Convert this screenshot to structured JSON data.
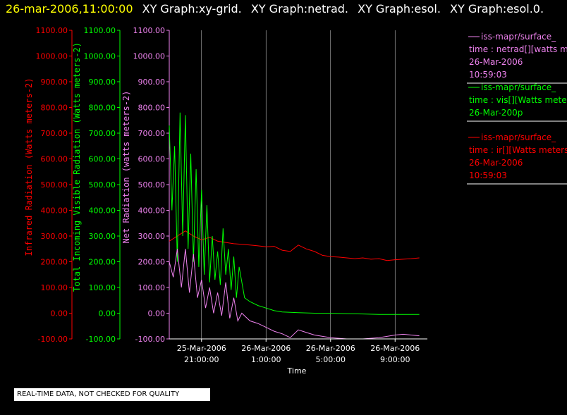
{
  "header": {
    "timestamp": "26-mar-2006,11:00:00",
    "graph_titles": [
      "XY Graph:xy-grid.",
      "XY Graph:netrad.",
      "XY Graph:esol.",
      "XY Graph:esol.0."
    ]
  },
  "colors": {
    "ir": "#ff0000",
    "vis": "#00ff00",
    "net": "#ee82ee",
    "grid": "#ffffff"
  },
  "chart_data": {
    "type": "line",
    "xlabel": "Time",
    "x_ticks": [
      {
        "line1": "25-Mar-2006",
        "line2": "21:00:00"
      },
      {
        "line1": "26-Mar-2006",
        "line2": "1:00:00"
      },
      {
        "line1": "26-Mar-2006",
        "line2": "5:00:00"
      },
      {
        "line1": "26-Mar-2006",
        "line2": "9:00:00"
      }
    ],
    "xlim": [
      "2006-03-25 19:00",
      "2006-03-26 11:00"
    ],
    "ylim": [
      -100,
      1100
    ],
    "y_ticks": [
      "1100.00",
      "1000.00",
      "900.00",
      "800.00",
      "700.00",
      "600.00",
      "500.00",
      "400.00",
      "300.00",
      "200.00",
      "100.00",
      "0.00",
      "-100.00"
    ],
    "axes": [
      {
        "label": "Infrared Radiation (Watts meters-2)",
        "color": "#ff0000"
      },
      {
        "label": "Total Incoming Visible Radiation (Watts meters-2)",
        "color": "#00ff00"
      },
      {
        "label": "Net Radiation (watts meters-2)",
        "color": "#ee82ee"
      }
    ],
    "series": [
      {
        "name": "ir",
        "color": "#ff0000",
        "points": [
          [
            "2006-03-25 19:00",
            280
          ],
          [
            "2006-03-25 19:30",
            300
          ],
          [
            "2006-03-25 20:00",
            320
          ],
          [
            "2006-03-25 20:30",
            300
          ],
          [
            "2006-03-25 21:00",
            285
          ],
          [
            "2006-03-25 21:30",
            295
          ],
          [
            "2006-03-25 22:00",
            280
          ],
          [
            "2006-03-25 22:30",
            275
          ],
          [
            "2006-03-25 23:00",
            270
          ],
          [
            "2006-03-25 23:30",
            268
          ],
          [
            "2006-03-26 00:00",
            265
          ],
          [
            "2006-03-26 00:30",
            262
          ],
          [
            "2006-03-26 01:00",
            258
          ],
          [
            "2006-03-26 01:30",
            260
          ],
          [
            "2006-03-26 02:00",
            245
          ],
          [
            "2006-03-26 02:30",
            240
          ],
          [
            "2006-03-26 03:00",
            265
          ],
          [
            "2006-03-26 03:30",
            250
          ],
          [
            "2006-03-26 04:00",
            240
          ],
          [
            "2006-03-26 04:30",
            225
          ],
          [
            "2006-03-26 05:00",
            220
          ],
          [
            "2006-03-26 05:30",
            218
          ],
          [
            "2006-03-26 06:00",
            215
          ],
          [
            "2006-03-26 06:30",
            212
          ],
          [
            "2006-03-26 07:00",
            215
          ],
          [
            "2006-03-26 07:30",
            210
          ],
          [
            "2006-03-26 08:00",
            212
          ],
          [
            "2006-03-26 08:30",
            205
          ],
          [
            "2006-03-26 09:00",
            208
          ],
          [
            "2006-03-26 09:30",
            210
          ],
          [
            "2006-03-26 10:00",
            212
          ],
          [
            "2006-03-26 10:30",
            215
          ]
        ]
      },
      {
        "name": "vis",
        "color": "#00ff00",
        "points": [
          [
            "2006-03-25 19:00",
            730
          ],
          [
            "2006-03-25 19:10",
            400
          ],
          [
            "2006-03-25 19:20",
            650
          ],
          [
            "2006-03-25 19:30",
            200
          ],
          [
            "2006-03-25 19:40",
            780
          ],
          [
            "2006-03-25 19:50",
            300
          ],
          [
            "2006-03-25 20:00",
            770
          ],
          [
            "2006-03-25 20:10",
            250
          ],
          [
            "2006-03-25 20:20",
            620
          ],
          [
            "2006-03-25 20:30",
            200
          ],
          [
            "2006-03-25 20:40",
            560
          ],
          [
            "2006-03-25 20:50",
            180
          ],
          [
            "2006-03-25 21:00",
            480
          ],
          [
            "2006-03-25 21:10",
            150
          ],
          [
            "2006-03-25 21:20",
            420
          ],
          [
            "2006-03-25 21:30",
            120
          ],
          [
            "2006-03-25 21:40",
            300
          ],
          [
            "2006-03-25 21:50",
            130
          ],
          [
            "2006-03-25 22:00",
            240
          ],
          [
            "2006-03-25 22:10",
            110
          ],
          [
            "2006-03-25 22:20",
            330
          ],
          [
            "2006-03-25 22:30",
            150
          ],
          [
            "2006-03-25 22:40",
            250
          ],
          [
            "2006-03-25 22:50",
            90
          ],
          [
            "2006-03-25 23:00",
            220
          ],
          [
            "2006-03-25 23:10",
            60
          ],
          [
            "2006-03-25 23:20",
            180
          ],
          [
            "2006-03-25 23:40",
            60
          ],
          [
            "2006-03-26 00:00",
            45
          ],
          [
            "2006-03-26 00:30",
            30
          ],
          [
            "2006-03-26 01:00",
            20
          ],
          [
            "2006-03-26 01:30",
            10
          ],
          [
            "2006-03-26 02:00",
            5
          ],
          [
            "2006-03-26 03:00",
            2
          ],
          [
            "2006-03-26 04:00",
            0
          ],
          [
            "2006-03-26 05:00",
            0
          ],
          [
            "2006-03-26 06:00",
            -2
          ],
          [
            "2006-03-26 07:00",
            -3
          ],
          [
            "2006-03-26 08:00",
            -5
          ],
          [
            "2006-03-26 09:00",
            -5
          ],
          [
            "2006-03-26 10:00",
            -5
          ],
          [
            "2006-03-26 10:30",
            -5
          ]
        ]
      },
      {
        "name": "net",
        "color": "#ee82ee",
        "points": [
          [
            "2006-03-25 19:00",
            200
          ],
          [
            "2006-03-25 19:15",
            140
          ],
          [
            "2006-03-25 19:30",
            250
          ],
          [
            "2006-03-25 19:45",
            100
          ],
          [
            "2006-03-25 20:00",
            250
          ],
          [
            "2006-03-25 20:15",
            80
          ],
          [
            "2006-03-25 20:30",
            230
          ],
          [
            "2006-03-25 20:45",
            60
          ],
          [
            "2006-03-25 21:00",
            130
          ],
          [
            "2006-03-25 21:15",
            20
          ],
          [
            "2006-03-25 21:30",
            100
          ],
          [
            "2006-03-25 21:45",
            0
          ],
          [
            "2006-03-25 22:00",
            80
          ],
          [
            "2006-03-25 22:15",
            -10
          ],
          [
            "2006-03-25 22:30",
            120
          ],
          [
            "2006-03-25 22:45",
            -20
          ],
          [
            "2006-03-25 23:00",
            60
          ],
          [
            "2006-03-25 23:15",
            -30
          ],
          [
            "2006-03-25 23:30",
            0
          ],
          [
            "2006-03-26 00:00",
            -30
          ],
          [
            "2006-03-26 00:30",
            -40
          ],
          [
            "2006-03-26 01:00",
            -55
          ],
          [
            "2006-03-26 01:30",
            -70
          ],
          [
            "2006-03-26 02:00",
            -80
          ],
          [
            "2006-03-26 02:30",
            -95
          ],
          [
            "2006-03-26 03:00",
            -65
          ],
          [
            "2006-03-26 03:30",
            -75
          ],
          [
            "2006-03-26 04:00",
            -85
          ],
          [
            "2006-03-26 05:00",
            -95
          ],
          [
            "2006-03-26 06:00",
            -100
          ],
          [
            "2006-03-26 07:00",
            -100
          ],
          [
            "2006-03-26 08:00",
            -95
          ],
          [
            "2006-03-26 08:30",
            -90
          ],
          [
            "2006-03-26 09:00",
            -85
          ],
          [
            "2006-03-26 09:30",
            -82
          ],
          [
            "2006-03-26 10:00",
            -85
          ],
          [
            "2006-03-26 10:30",
            -88
          ]
        ]
      }
    ]
  },
  "legend": [
    {
      "color": "#ee82ee",
      "lines": [
        "iss-mapr/surface_",
        "time : netrad[][watts m",
        "26-Mar-2006",
        "10:59:03"
      ]
    },
    {
      "color": "#00ff00",
      "lines": [
        "iss-mapr/surface_",
        "time : vis[][Watts meter",
        "26-Mar-200p"
      ]
    },
    {
      "color": "#ff0000",
      "lines": [
        "iss-mapr/surface_",
        "time : ir[][Watts meters",
        "26-Mar-2006",
        "10:59:03"
      ]
    }
  ],
  "quality_notice": "REAL-TIME DATA, NOT CHECKED FOR QUALITY"
}
